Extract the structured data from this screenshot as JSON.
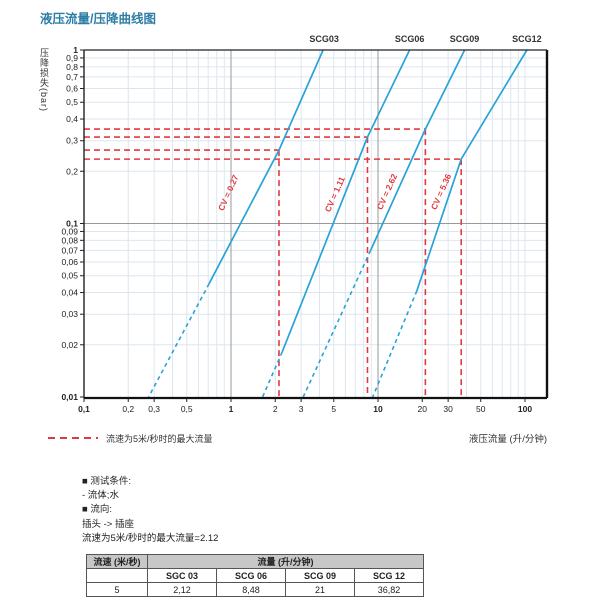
{
  "title": "液压流量/压降曲线图",
  "legend": {
    "max_flow_label": "流速为5米/秒时的最大流量"
  },
  "chart_data": {
    "type": "line",
    "title": "液压流量/压降曲线图",
    "xlabel": "液压流量 (升/分钟)",
    "ylabel": "压降损失(bar)",
    "x_scale": "log",
    "y_scale": "log",
    "xlim": [
      0.1,
      100
    ],
    "ylim": [
      0.01,
      1
    ],
    "grid": "on",
    "x_ticks": [
      {
        "label": "0,1",
        "v": 0.1,
        "bold": true
      },
      {
        "label": "0,2",
        "v": 0.2
      },
      {
        "label": "0,3",
        "v": 0.3
      },
      {
        "label": "0,5",
        "v": 0.5
      },
      {
        "label": "1",
        "v": 1,
        "bold": true
      },
      {
        "label": "2",
        "v": 2
      },
      {
        "label": "3",
        "v": 3
      },
      {
        "label": "5",
        "v": 5
      },
      {
        "label": "10",
        "v": 10,
        "bold": true
      },
      {
        "label": "20",
        "v": 20
      },
      {
        "label": "30",
        "v": 30
      },
      {
        "label": "50",
        "v": 50
      },
      {
        "label": "100",
        "v": 100,
        "bold": true
      }
    ],
    "y_ticks": [
      {
        "label": "1",
        "v": 1,
        "bold": true
      },
      {
        "label": "0,9",
        "v": 0.9
      },
      {
        "label": "0,8",
        "v": 0.8
      },
      {
        "label": "0,7",
        "v": 0.7
      },
      {
        "label": "0,6",
        "v": 0.6
      },
      {
        "label": "0,5",
        "v": 0.5
      },
      {
        "label": "0,4",
        "v": 0.4
      },
      {
        "label": "0,3",
        "v": 0.3
      },
      {
        "label": "0,2",
        "v": 0.2
      },
      {
        "label": "0,1",
        "v": 0.1,
        "bold": true
      },
      {
        "label": "0,09",
        "v": 0.09
      },
      {
        "label": "0,08",
        "v": 0.08
      },
      {
        "label": "0,07",
        "v": 0.07
      },
      {
        "label": "0,06",
        "v": 0.06
      },
      {
        "label": "0,05",
        "v": 0.05
      },
      {
        "label": "0,04",
        "v": 0.04
      },
      {
        "label": "0,03",
        "v": 0.03
      },
      {
        "label": "0,02",
        "v": 0.02
      },
      {
        "label": "0,01",
        "v": 0.01,
        "bold": true
      }
    ],
    "series": [
      {
        "name": "SCG03",
        "cv_label": "CV = 0.27",
        "cv": 0.27,
        "points": [
          [
            4.23,
            1
          ],
          [
            2.12,
            0.265
          ],
          [
            0.71,
            0.045
          ],
          [
            0.275,
            0.01
          ]
        ],
        "dash_from": 2,
        "max_flow_lpm": 2.12,
        "dp_at_max_bar": 0.265,
        "cv_label_at": [
          1.0,
          0.148
        ],
        "name_label_at": 4.3
      },
      {
        "name": "SCG06",
        "cv_label": "CV = 1.11",
        "cv": 1.11,
        "points": [
          [
            16.4,
            1
          ],
          [
            8.48,
            0.315
          ],
          [
            2.23,
            0.0182
          ],
          [
            1.64,
            0.01
          ]
        ],
        "dash_from": 2,
        "max_flow_lpm": 8.48,
        "dp_at_max_bar": 0.315,
        "cv_label_at": [
          5.3,
          0.145
        ],
        "name_label_at": 16.4
      },
      {
        "name": "SCG09",
        "cv_label": "CV = 2.62",
        "cv": 2.62,
        "points": [
          [
            38.8,
            1
          ],
          [
            21,
            0.35
          ],
          [
            8.9,
            0.07
          ],
          [
            3.1,
            0.01
          ]
        ],
        "dash_from": 2,
        "max_flow_lpm": 21,
        "dp_at_max_bar": 0.35,
        "cv_label_at": [
          12,
          0.15
        ],
        "name_label_at": 38.8
      },
      {
        "name": "SCG12",
        "cv_label": "CV = 5.36",
        "cv": 5.36,
        "points": [
          [
            103,
            1
          ],
          [
            36.82,
            0.235
          ],
          [
            18.4,
            0.041
          ],
          [
            9.2,
            0.01
          ]
        ],
        "dash_from": 2,
        "max_flow_lpm": 36.82,
        "dp_at_max_bar": 0.235,
        "cv_label_at": [
          28,
          0.15
        ],
        "name_label_at": 103
      }
    ],
    "guide_legend": "流速为5米/秒时的最大流量",
    "legend_position": "bottom-left",
    "colors": {
      "curve": "#29a3d7",
      "guide": "#e0393e",
      "grid_minor": "#dde6f0",
      "grid_major": "#999999",
      "axis": "#222222"
    }
  },
  "conditions": {
    "lines": [
      "■ 测试条件:",
      "- 流体;水",
      "■ 流向:",
      "插头 -> 插座",
      "流速为5米/秒时的最大流量=2.12"
    ]
  },
  "table": {
    "col0_header": "流速 (米/秒)",
    "group_header": "流量 (升/分钟)",
    "columns": [
      "SGC 03",
      "SCG 06",
      "SCG 09",
      "SCG 12"
    ],
    "rows": [
      {
        "speed": "5",
        "values": [
          "2,12",
          "8,48",
          "21",
          "36,82"
        ]
      }
    ]
  }
}
